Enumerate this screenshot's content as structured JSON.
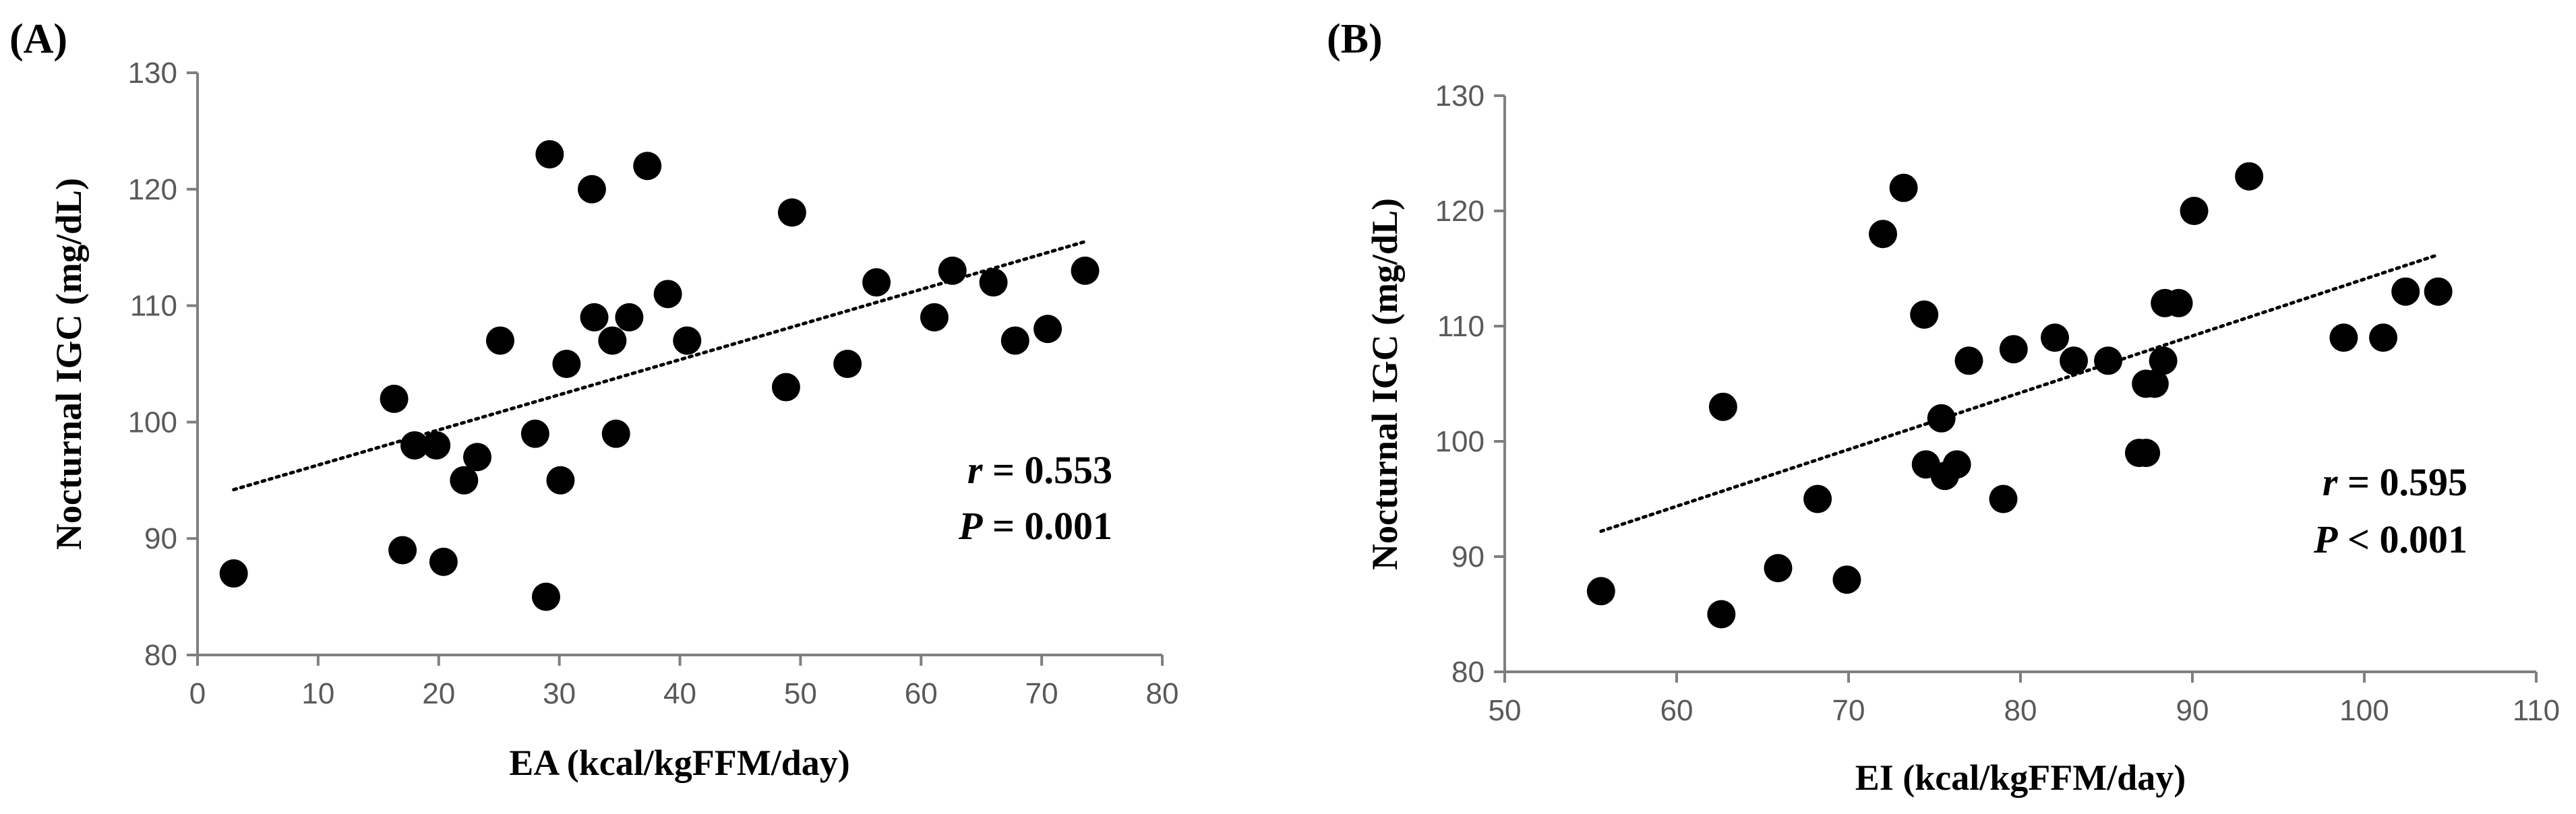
{
  "chart_data": [
    {
      "type": "scatter",
      "panel_label": "(A)",
      "xlabel": "EA (kcal/kgFFM/day)",
      "ylabel": "Nocturnal IGC (mg/dL)",
      "xlim": [
        0,
        80
      ],
      "ylim": [
        80,
        130
      ],
      "xticks": [
        "0",
        "10",
        "20",
        "30",
        "40",
        "50",
        "60",
        "70",
        "80"
      ],
      "yticks": [
        "80",
        "90",
        "100",
        "110",
        "120",
        "130"
      ],
      "points": [
        [
          3,
          87
        ],
        [
          16.3,
          102
        ],
        [
          17,
          89
        ],
        [
          18,
          98
        ],
        [
          19.8,
          98
        ],
        [
          20.4,
          88
        ],
        [
          22.1,
          95
        ],
        [
          23.2,
          97
        ],
        [
          25.1,
          107
        ],
        [
          28,
          99
        ],
        [
          28.9,
          85
        ],
        [
          29.2,
          123
        ],
        [
          30.1,
          95
        ],
        [
          30.6,
          105
        ],
        [
          32.7,
          120
        ],
        [
          32.9,
          109
        ],
        [
          34.4,
          107
        ],
        [
          34.7,
          99
        ],
        [
          35.8,
          109
        ],
        [
          37.3,
          122
        ],
        [
          39,
          111
        ],
        [
          40.6,
          107
        ],
        [
          48.8,
          103
        ],
        [
          49.3,
          118
        ],
        [
          53.9,
          105
        ],
        [
          56.3,
          112
        ],
        [
          61.1,
          109
        ],
        [
          62.6,
          113
        ],
        [
          66,
          112
        ],
        [
          67.8,
          107
        ],
        [
          70.5,
          108
        ],
        [
          73.6,
          113
        ]
      ],
      "trendline": {
        "x": [
          3,
          73.6
        ],
        "y": [
          94.2,
          115.5
        ]
      },
      "stats": {
        "r_label": "r",
        "r_value": "= 0.553",
        "p_label": "P",
        "p_value": "= 0.001"
      }
    },
    {
      "type": "scatter",
      "panel_label": "(B)",
      "xlabel": "EI (kcal/kgFFM/day)",
      "ylabel": "Nocturnal IGC (mg/dL)",
      "xlim": [
        50,
        110
      ],
      "ylim": [
        80,
        130
      ],
      "xticks": [
        "50",
        "60",
        "70",
        "80",
        "90",
        "100",
        "110"
      ],
      "yticks": [
        "80",
        "90",
        "100",
        "110",
        "120",
        "130"
      ],
      "points": [
        [
          55.6,
          87
        ],
        [
          62.6,
          85
        ],
        [
          62.7,
          103
        ],
        [
          65.9,
          89
        ],
        [
          68.2,
          95
        ],
        [
          69.9,
          88
        ],
        [
          72,
          118
        ],
        [
          73.2,
          122
        ],
        [
          74.4,
          111
        ],
        [
          74.5,
          98
        ],
        [
          75.4,
          102
        ],
        [
          75.6,
          97
        ],
        [
          76.3,
          98
        ],
        [
          77,
          107
        ],
        [
          79,
          95
        ],
        [
          79.6,
          108
        ],
        [
          82,
          109
        ],
        [
          83.1,
          107
        ],
        [
          85.1,
          107
        ],
        [
          86.9,
          99
        ],
        [
          87.3,
          99
        ],
        [
          87.3,
          105
        ],
        [
          87.8,
          105
        ],
        [
          88.3,
          107
        ],
        [
          88.4,
          112
        ],
        [
          89.2,
          112
        ],
        [
          90.1,
          120
        ],
        [
          93.3,
          123
        ],
        [
          98.8,
          109
        ],
        [
          101.1,
          109
        ],
        [
          102.4,
          113
        ],
        [
          104.3,
          113
        ]
      ],
      "trendline": {
        "x": [
          55.6,
          104.3
        ],
        "y": [
          92.2,
          116.2
        ]
      },
      "stats": {
        "r_label": "r",
        "r_value": "= 0.595",
        "p_label": "P",
        "p_value": "< 0.001"
      }
    }
  ]
}
